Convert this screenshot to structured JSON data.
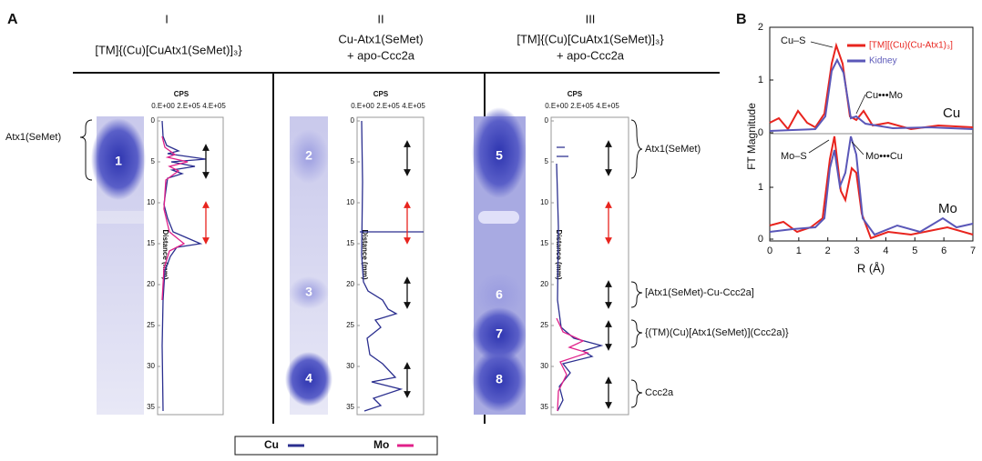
{
  "panel_a": {
    "label": "A",
    "columns": [
      {
        "numeral": "I",
        "title_lines": [
          "[TM]{(Cu)[CuAtx1(SeMet)]₃}"
        ]
      },
      {
        "numeral": "II",
        "title_lines": [
          "Cu-Atx1(SeMet)",
          "+ apo-Ccc2a"
        ]
      },
      {
        "numeral": "III",
        "title_lines": [
          "[TM]{(Cu)[CuAtx1(SeMet)]₃}",
          "+ apo-Ccc2a"
        ]
      }
    ],
    "bands": [
      "1",
      "2",
      "3",
      "4",
      "5",
      "6",
      "7",
      "8"
    ],
    "profile_axis": {
      "title": "CPS",
      "x_ticks": [
        "0.E+00",
        "2.E+05",
        "4.E+05"
      ],
      "y_title": "Distance (mm)",
      "y_ticks": [
        0,
        5,
        10,
        15,
        20,
        25,
        30,
        35
      ]
    },
    "left_annotation": "Atx1(SeMet)",
    "right_annotations": [
      "Atx1(SeMet)",
      "[Atx1(SeMet)-Cu-Ccc2a]",
      "{(TM)(Cu)[Atx1(SeMet)](Ccc2a)}",
      "Ccc2a"
    ],
    "legend": [
      {
        "name": "Cu",
        "color": "#2b2f8f"
      },
      {
        "name": "Mo",
        "color": "#e0218a"
      }
    ]
  },
  "panel_b": {
    "label": "B",
    "y_title": "FT Magnitude",
    "x_title": "R (Å)",
    "top_yticks": [
      0,
      1,
      2
    ],
    "bottom_yticks": [
      0,
      1
    ],
    "xticks": [
      0,
      1,
      2,
      3,
      4,
      5,
      6,
      7
    ],
    "legend": [
      {
        "name": "[TM][(Cu)(Cu-Atx1)₃]",
        "color": "#e8241e"
      },
      {
        "name": "Kidney",
        "color": "#5a57b8"
      }
    ],
    "annotations": [
      "Cu–S",
      "Cu•••Mo",
      "Cu",
      "Mo–S",
      "Mo•••Cu",
      "Mo"
    ]
  }
}
